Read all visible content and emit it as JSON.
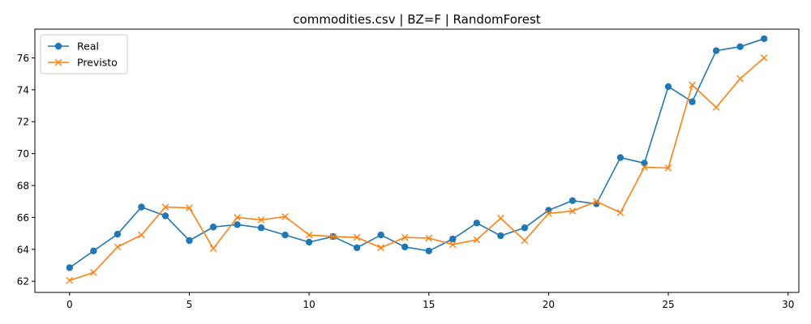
{
  "chart_data": {
    "type": "line",
    "title": "commodities.csv | BZ=F | RandomForest",
    "xlabel": "",
    "ylabel": "",
    "xlim": [
      -1.45,
      30.45
    ],
    "ylim": [
      61.3,
      77.8
    ],
    "xticks": [
      0,
      5,
      10,
      15,
      20,
      25,
      30
    ],
    "yticks": [
      62,
      64,
      66,
      68,
      70,
      72,
      74,
      76
    ],
    "grid": false,
    "legend": "top-left",
    "x": [
      0,
      1,
      2,
      3,
      4,
      5,
      6,
      7,
      8,
      9,
      10,
      11,
      12,
      13,
      14,
      15,
      16,
      17,
      18,
      19,
      20,
      21,
      22,
      23,
      24,
      25,
      26,
      27,
      28,
      29
    ],
    "series": [
      {
        "name": "Real",
        "color": "#1f77b4",
        "marker": "circle",
        "values": [
          62.85,
          63.9,
          64.95,
          66.65,
          66.1,
          64.55,
          65.4,
          65.55,
          65.35,
          64.9,
          64.45,
          64.8,
          64.1,
          64.9,
          64.15,
          63.9,
          64.65,
          65.65,
          64.85,
          65.35,
          66.45,
          67.05,
          66.85,
          69.75,
          69.4,
          74.2,
          73.25,
          76.45,
          76.7,
          77.2
        ]
      },
      {
        "name": "Previsto",
        "color": "#ff7f0e",
        "marker": "x",
        "values": [
          62.05,
          62.55,
          64.15,
          64.9,
          66.65,
          66.6,
          64.05,
          66.0,
          65.85,
          66.05,
          64.9,
          64.8,
          64.75,
          64.1,
          64.75,
          64.7,
          64.3,
          64.6,
          65.95,
          64.55,
          66.25,
          66.4,
          67.0,
          66.3,
          69.15,
          69.1,
          74.3,
          72.9,
          74.7,
          76.0
        ]
      }
    ]
  }
}
